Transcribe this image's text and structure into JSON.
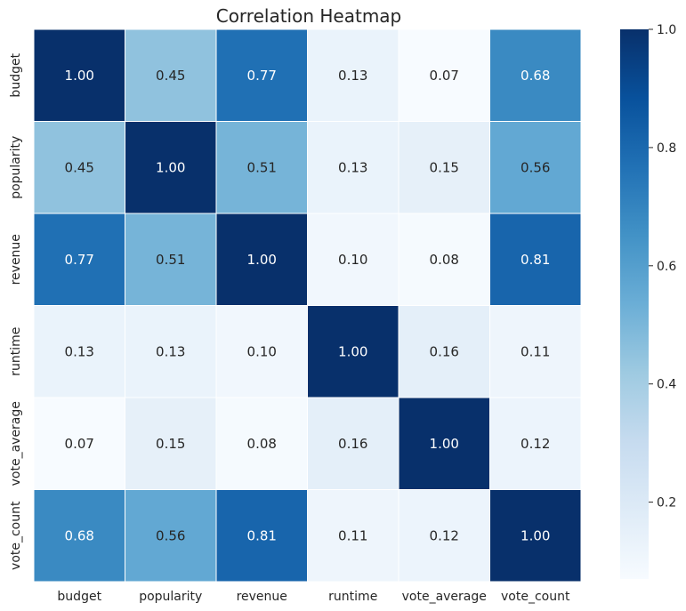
{
  "chart_data": {
    "type": "heatmap",
    "title": "Correlation Heatmap",
    "x_labels": [
      "budget",
      "popularity",
      "revenue",
      "runtime",
      "vote_average",
      "vote_count"
    ],
    "y_labels": [
      "budget",
      "popularity",
      "revenue",
      "runtime",
      "vote_average",
      "vote_count"
    ],
    "matrix": [
      [
        1.0,
        0.45,
        0.77,
        0.13,
        0.07,
        0.68
      ],
      [
        0.45,
        1.0,
        0.51,
        0.13,
        0.15,
        0.56
      ],
      [
        0.77,
        0.51,
        1.0,
        0.1,
        0.08,
        0.81
      ],
      [
        0.13,
        0.13,
        0.1,
        1.0,
        0.16,
        0.11
      ],
      [
        0.07,
        0.15,
        0.08,
        0.16,
        1.0,
        0.12
      ],
      [
        0.68,
        0.56,
        0.81,
        0.11,
        0.12,
        1.0
      ]
    ],
    "annotation_format": "0.00",
    "colormap": "Blues",
    "colormap_stops": [
      "#f7fbff",
      "#deebf7",
      "#c6dbef",
      "#9ecae1",
      "#6baed6",
      "#4292c6",
      "#2171b5",
      "#08519c",
      "#08306b"
    ],
    "color_range": [
      0.07,
      1.0
    ],
    "colorbar_ticks": [
      "0.2",
      "0.4",
      "0.6",
      "0.8",
      "1.0"
    ],
    "grid_line_color": "#ffffff",
    "legend": "colorbar-right"
  }
}
